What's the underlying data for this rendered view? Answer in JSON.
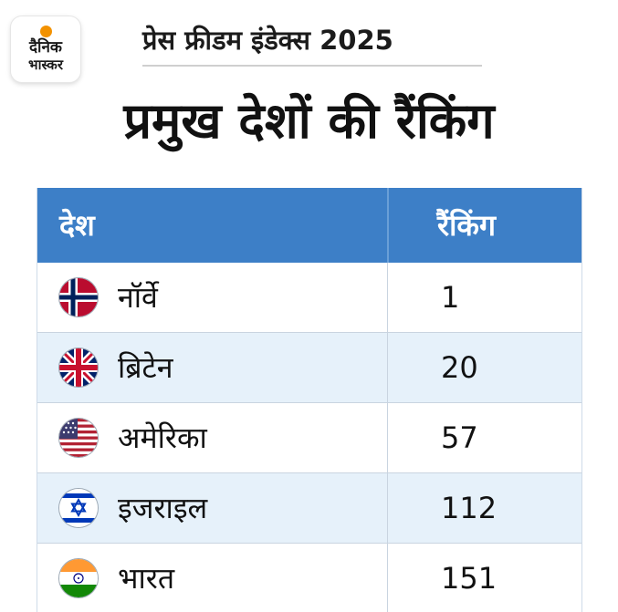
{
  "brand": {
    "line1": "दैनिक",
    "line2": "भास्कर",
    "accent_color": "#f39200"
  },
  "subtitle": "प्रेस फ्रीडम इंडेक्स 2025",
  "title": "प्रमुख देशों की रैंकिंग",
  "table": {
    "header": {
      "country": "देश",
      "ranking": "रैंकिंग",
      "color": "#3d7fc7"
    },
    "rows": [
      {
        "country": "नॉर्वे",
        "ranking": "1",
        "flag": "norway-flag-icon"
      },
      {
        "country": "ब्रिटेन",
        "ranking": "20",
        "flag": "uk-flag-icon"
      },
      {
        "country": "अमेरिका",
        "ranking": "57",
        "flag": "usa-flag-icon"
      },
      {
        "country": "इजराइल",
        "ranking": "112",
        "flag": "israel-flag-icon"
      },
      {
        "country": "भारत",
        "ranking": "151",
        "flag": "india-flag-icon"
      }
    ]
  }
}
